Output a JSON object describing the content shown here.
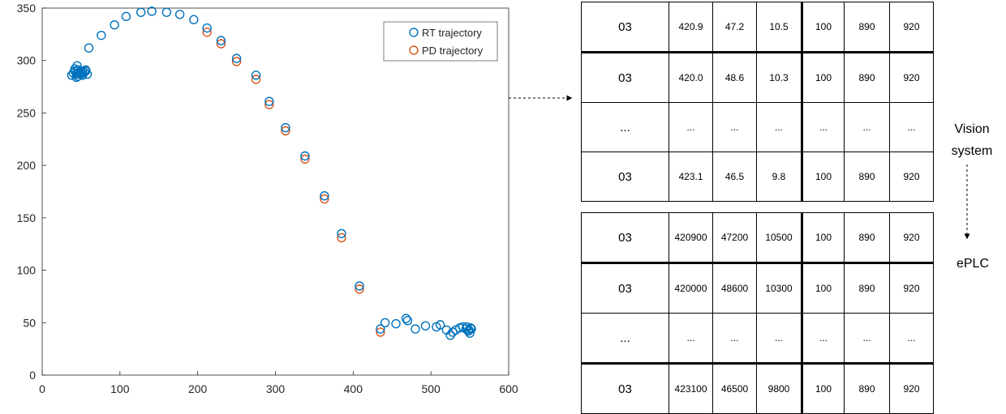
{
  "chart_data": {
    "type": "scatter",
    "title": "",
    "xlabel": "",
    "ylabel": "",
    "xlim": [
      0,
      600
    ],
    "ylim": [
      0,
      350
    ],
    "xticks": [
      0,
      100,
      200,
      300,
      400,
      500,
      600
    ],
    "yticks": [
      0,
      50,
      100,
      150,
      200,
      250,
      300,
      350
    ],
    "grid": false,
    "legend_position": "top-right",
    "series": [
      {
        "name": "RT trajectory",
        "color": "#0072BD",
        "marker": "circle-open",
        "x": [
          38,
          40,
          42,
          44,
          45,
          46,
          48,
          50,
          52,
          54,
          56,
          58,
          42,
          46,
          52,
          56,
          44,
          50,
          45,
          60,
          76,
          93,
          108,
          127,
          141,
          160,
          177,
          195,
          212,
          230,
          250,
          275,
          292,
          313,
          338,
          363,
          385,
          408,
          435,
          441,
          455,
          468,
          470,
          480,
          493,
          507,
          512,
          520,
          525,
          528,
          532,
          537,
          541,
          545,
          548,
          550,
          552,
          549,
          546,
          551
        ],
        "y": [
          286,
          288,
          290,
          287,
          295,
          291,
          289,
          290,
          288,
          289,
          290,
          287,
          292,
          285,
          286,
          291,
          284,
          287,
          288,
          312,
          324,
          334,
          342,
          346,
          347,
          346,
          344,
          339,
          331,
          319,
          302,
          286,
          261,
          236,
          209,
          171,
          135,
          85,
          44,
          50,
          49,
          54,
          52,
          44,
          47,
          46,
          48,
          43,
          38,
          41,
          43,
          45,
          46,
          44,
          42,
          40,
          44,
          43,
          46,
          45
        ]
      },
      {
        "name": "PD trajectory",
        "color": "#D95319",
        "marker": "circle-open",
        "x": [
          212,
          230,
          250,
          275,
          292,
          313,
          338,
          363,
          385,
          408,
          435
        ],
        "y": [
          327,
          316,
          299,
          282,
          258,
          233,
          206,
          168,
          131,
          82,
          41
        ]
      }
    ]
  },
  "table_top": {
    "rows": [
      [
        "03",
        "420.9",
        "47.2",
        "10.5",
        "100",
        "890",
        "920"
      ],
      [
        "03",
        "420.0",
        "48.6",
        "10.3",
        "100",
        "890",
        "920"
      ],
      [
        "...",
        "...",
        "...",
        "...",
        "...",
        "...",
        "..."
      ],
      [
        "03",
        "423.1",
        "46.5",
        "9.8",
        "100",
        "890",
        "920"
      ]
    ]
  },
  "table_bottom": {
    "rows": [
      [
        "03",
        "420900",
        "47200",
        "10500",
        "100",
        "890",
        "920"
      ],
      [
        "03",
        "420000",
        "48600",
        "10300",
        "100",
        "890",
        "920"
      ],
      [
        "...",
        "...",
        "...",
        "...",
        "...",
        "...",
        "..."
      ],
      [
        "03",
        "423100",
        "46500",
        "9800",
        "100",
        "890",
        "920"
      ]
    ]
  },
  "labels": {
    "vision_system": "Vision system",
    "eplc": "ePLC"
  }
}
